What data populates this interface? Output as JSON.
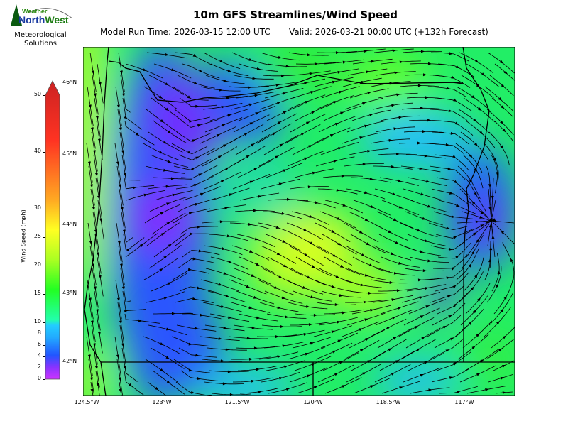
{
  "header": {
    "title": "10m GFS Streamlines/Wind Speed",
    "model_run": "Model Run Time: 2026-03-15 12:00 UTC",
    "valid": "Valid: 2026-03-21 00:00 UTC  (+132h Forecast)"
  },
  "logo": {
    "brand_top": "Weather",
    "brand_main": "NorthWest",
    "tagline_1": "Meteorological",
    "tagline_2": "Solutions"
  },
  "colorbar": {
    "label": "Wind Speed (mph)",
    "ticks": [
      "0",
      "2",
      "4",
      "6",
      "8",
      "10",
      "15",
      "20",
      "25",
      "30",
      "40",
      "50"
    ],
    "extend": "max",
    "colors": [
      "#cc33ff",
      "#7a33ff",
      "#2255ff",
      "#22aaff",
      "#22ccff",
      "#22ffaa",
      "#22ff22",
      "#aaff22",
      "#ffff22",
      "#ffaa22",
      "#ff3322",
      "#cc2222"
    ]
  },
  "map": {
    "lat_labels": [
      "46°N",
      "45°N",
      "44°N",
      "43°N",
      "42°N"
    ],
    "lon_labels": [
      "124.5°W",
      "123°W",
      "121.5°W",
      "120°W",
      "118.5°W",
      "117°W"
    ]
  }
}
